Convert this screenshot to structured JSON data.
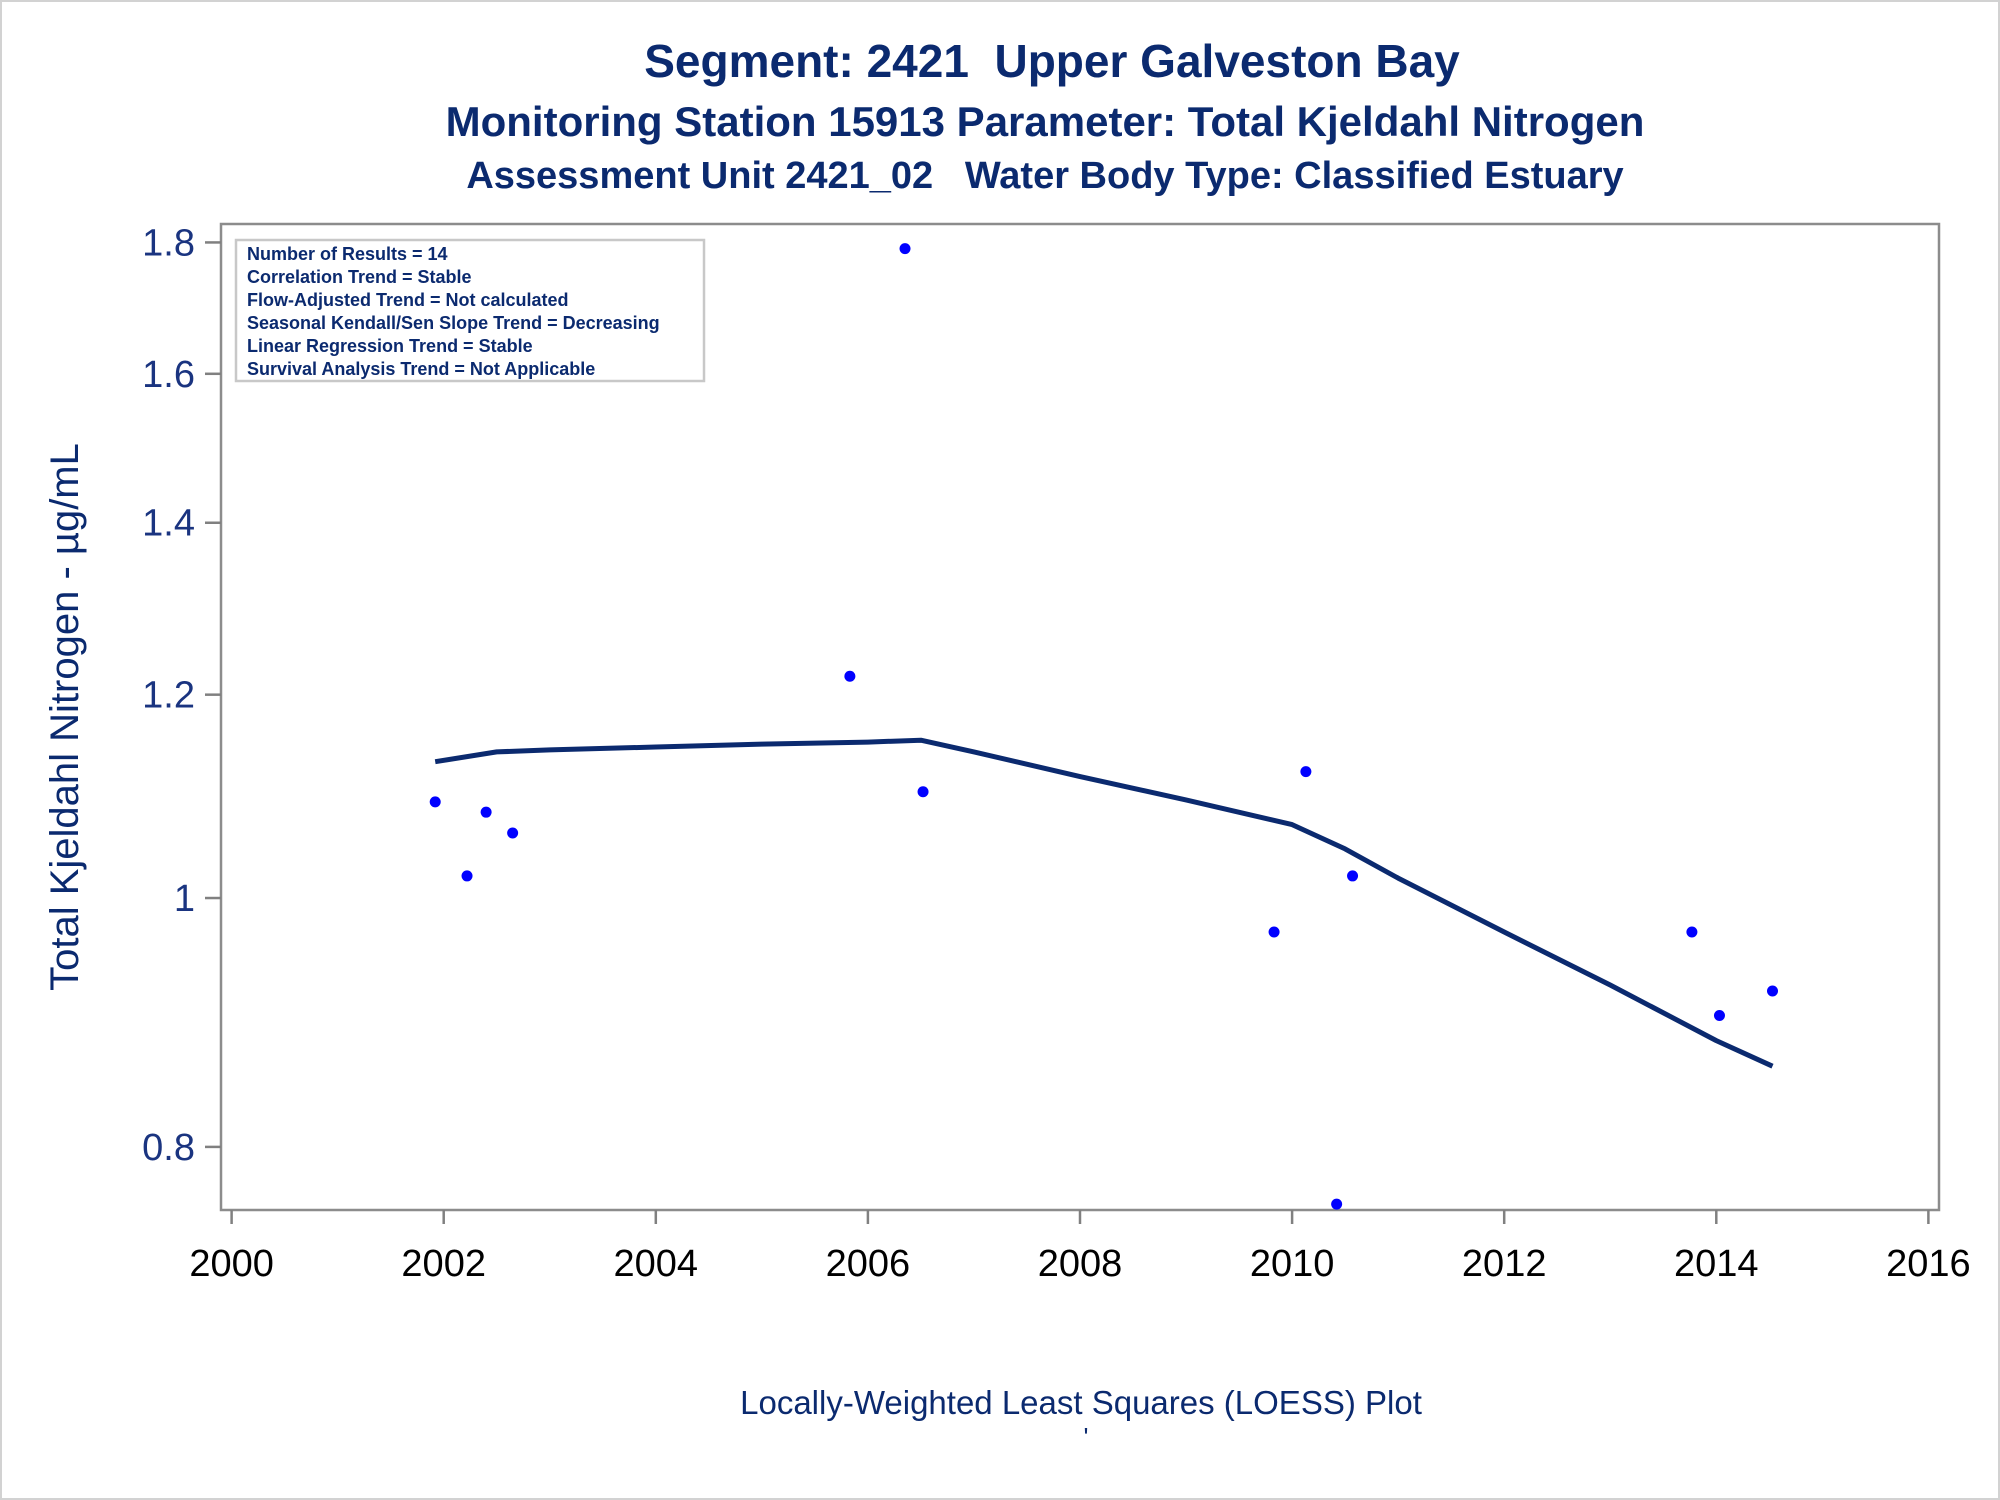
{
  "titles": {
    "line1": "Segment: 2421  Upper Galveston Bay",
    "line2": "Monitoring Station 15913 Parameter: Total Kjeldahl Nitrogen",
    "line3": "Assessment Unit 2421_02   Water Body Type: Classified Estuary"
  },
  "footnote": {
    "caption": "Locally-Weighted Least Squares (LOESS) Plot",
    "tick_mark": "'"
  },
  "stats_box": [
    "Number of Results = 14",
    "Correlation Trend = Stable",
    "Flow-Adjusted Trend = Not calculated",
    "Seasonal Kendall/Sen Slope Trend = Decreasing",
    "Linear Regression Trend = Stable",
    "Survival Analysis Trend = Not Applicable"
  ],
  "colors": {
    "title": "#0b2a6f",
    "points": "#0000ff",
    "loess_line": "#0b2a6f",
    "axis": "#808080"
  },
  "chart_data": {
    "type": "scatter",
    "xlabel": "",
    "ylabel": "Total Kjeldahl Nitrogen -  µg/mL",
    "yscale": "log",
    "xlim": [
      1999.9,
      2016.1
    ],
    "ylim": [
      0.756,
      1.83
    ],
    "xticks": [
      2000,
      2002,
      2004,
      2006,
      2008,
      2010,
      2012,
      2014,
      2016
    ],
    "xtick_labels": [
      "2000",
      "2002",
      "2004",
      "2006",
      "2008",
      "2010",
      "2012",
      "2014",
      "2016"
    ],
    "yticks": [
      0.8,
      1,
      1.2,
      1.4,
      1.6,
      1.8
    ],
    "ytick_labels": [
      "0.8",
      "1",
      "1.2",
      "1.4",
      "1.6",
      "1.8"
    ],
    "grid": false,
    "series": [
      {
        "type": "scatter",
        "x": [
          2001.92,
          2002.22,
          2002.4,
          2002.65,
          2005.83,
          2006.35,
          2006.52,
          2009.83,
          2010.13,
          2010.42,
          2010.57,
          2013.77,
          2014.03,
          2014.53
        ],
        "y": [
          1.09,
          1.02,
          1.08,
          1.06,
          1.22,
          1.79,
          1.1,
          0.97,
          1.12,
          0.76,
          1.02,
          0.97,
          0.9,
          0.92
        ]
      },
      {
        "type": "line",
        "x": [
          2001.92,
          2002.5,
          2003.0,
          2004.0,
          2005.0,
          2006.0,
          2006.5,
          2007.0,
          2008.0,
          2009.0,
          2010.0,
          2010.5,
          2011.0,
          2012.0,
          2013.0,
          2014.0,
          2014.53
        ],
        "y": [
          1.13,
          1.14,
          1.142,
          1.145,
          1.148,
          1.15,
          1.152,
          1.14,
          1.115,
          1.092,
          1.068,
          1.045,
          1.018,
          0.97,
          0.925,
          0.88,
          0.86
        ]
      }
    ]
  }
}
